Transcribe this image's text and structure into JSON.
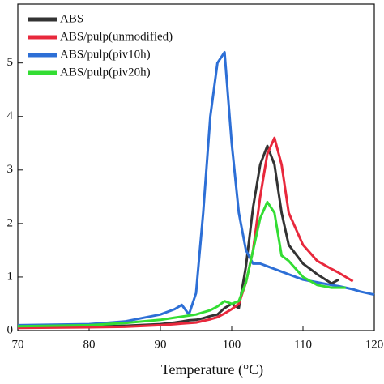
{
  "chart_data": {
    "type": "line",
    "x_label": "Temperature (°C)",
    "x": [
      70,
      80,
      85,
      90,
      92,
      93,
      94,
      95,
      96,
      97,
      98,
      99,
      100,
      101,
      102,
      103,
      104,
      105,
      106,
      107,
      108,
      110,
      112,
      114,
      115,
      116,
      117,
      118,
      120
    ],
    "series": [
      {
        "name": "ABS",
        "color": "#333333",
        "values": [
          0.06,
          0.07,
          0.09,
          0.12,
          0.15,
          0.17,
          0.19,
          0.2,
          0.23,
          0.27,
          0.3,
          0.42,
          0.5,
          0.42,
          1.2,
          2.3,
          3.1,
          3.45,
          3.1,
          2.2,
          1.6,
          1.25,
          1.05,
          0.88,
          0.95,
          null,
          null,
          null,
          null
        ]
      },
      {
        "name": "ABS/pulp(unmodified)",
        "color": "#e8283c",
        "values": [
          0.05,
          0.06,
          0.07,
          0.1,
          0.12,
          0.13,
          0.14,
          0.15,
          0.18,
          0.21,
          0.25,
          0.32,
          0.4,
          0.5,
          0.9,
          1.5,
          2.5,
          3.3,
          3.6,
          3.1,
          2.2,
          1.6,
          1.3,
          1.15,
          1.08,
          1.0,
          0.92,
          null,
          null
        ]
      },
      {
        "name": "ABS/pulp(piv10h)",
        "color": "#2d6fd6",
        "values": [
          0.1,
          0.12,
          0.17,
          0.3,
          0.4,
          0.48,
          0.3,
          0.7,
          2.2,
          4.0,
          5.0,
          5.2,
          3.5,
          2.2,
          1.5,
          1.25,
          1.25,
          1.2,
          1.15,
          1.1,
          1.05,
          0.95,
          0.9,
          0.85,
          0.83,
          0.8,
          0.77,
          0.73,
          0.67
        ]
      },
      {
        "name": "ABS/pulp(piv20h)",
        "color": "#33dd33",
        "values": [
          0.08,
          0.1,
          0.14,
          0.2,
          0.24,
          0.26,
          0.28,
          0.3,
          0.34,
          0.38,
          0.45,
          0.55,
          0.5,
          0.55,
          0.9,
          1.5,
          2.1,
          2.4,
          2.2,
          1.4,
          1.3,
          1.0,
          0.85,
          0.8,
          0.8,
          0.8,
          null,
          null,
          null
        ]
      }
    ],
    "xlim": [
      70,
      120
    ],
    "xticks": [
      70,
      80,
      90,
      100,
      110,
      120
    ],
    "ylim": [
      0,
      6.1
    ],
    "yticks": [
      0,
      1,
      2,
      3,
      4,
      5
    ],
    "legend": "upper-left"
  }
}
